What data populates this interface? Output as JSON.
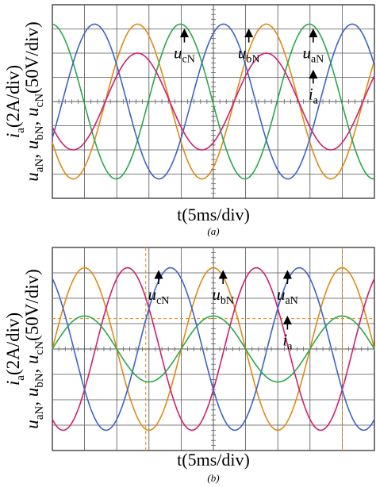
{
  "figure_caption": "",
  "chart_data": [
    {
      "type": "line",
      "panel_label": "(a)",
      "xlabel": "t(5ms/div)",
      "ylabel_parts": [
        "u",
        "aN",
        ", u",
        "bN",
        ", u",
        "cN",
        "(50V/div)"
      ],
      "ylabel2_parts": [
        "i",
        "a",
        "(2A/div)"
      ],
      "xlim": [
        0,
        10
      ],
      "ylim": [
        -4,
        4
      ],
      "x_unit": "div",
      "y_unit": "div",
      "grid": true,
      "series": [
        {
          "name": "uaN",
          "color": "#e08a14",
          "amplitude": 3.2,
          "phase_deg": -148,
          "period_div": 4
        },
        {
          "name": "ubN",
          "color": "#2aa84a",
          "amplitude": 3.2,
          "phase_deg": 92,
          "period_div": 4
        },
        {
          "name": "ucN",
          "color": "#3d63c9",
          "amplitude": 3.2,
          "phase_deg": -28,
          "period_div": 4
        },
        {
          "name": "ia",
          "color": "#d21f6e",
          "amplitude": 2.0,
          "phase_deg": -148,
          "period_div": 4
        }
      ],
      "annotations": [
        {
          "base": "u",
          "sub": "cN",
          "x": 4.1,
          "y": 2.9
        },
        {
          "base": "u",
          "sub": "bN",
          "x": 6.1,
          "y": 2.9
        },
        {
          "base": "u",
          "sub": "aN",
          "x": 8.1,
          "y": 2.9
        },
        {
          "base": "i",
          "sub": "a",
          "x": 8.1,
          "y": 1.2
        }
      ]
    },
    {
      "type": "line",
      "panel_label": "(b)",
      "xlabel": "t(5ms/div)",
      "ylabel_parts": [
        "u",
        "aN",
        ", u",
        "bN",
        ", u",
        "cN",
        "(50V/div)"
      ],
      "ylabel2_parts": [
        "i",
        "a",
        "(2A/div)"
      ],
      "xlim": [
        0,
        10
      ],
      "ylim": [
        -4,
        4
      ],
      "x_unit": "div",
      "y_unit": "div",
      "grid": true,
      "series": [
        {
          "name": "uaN",
          "color": "#e08a14",
          "amplitude": 3.2,
          "phase_deg": 0,
          "period_div": 4
        },
        {
          "name": "ubN",
          "color": "#d21f6e",
          "amplitude": 3.2,
          "phase_deg": -120,
          "period_div": 4
        },
        {
          "name": "ucN",
          "color": "#3d63c9",
          "amplitude": 3.2,
          "phase_deg": 120,
          "period_div": 4
        },
        {
          "name": "ia",
          "color": "#2aa84a",
          "amplitude": 1.3,
          "phase_deg": 0,
          "period_div": 4
        }
      ],
      "annotations": [
        {
          "base": "u",
          "sub": "cN",
          "x": 3.3,
          "y": 3.0
        },
        {
          "base": "u",
          "sub": "bN",
          "x": 5.3,
          "y": 3.0
        },
        {
          "base": "u",
          "sub": "aN",
          "x": 7.3,
          "y": 3.0
        },
        {
          "base": "i",
          "sub": "a",
          "x": 7.3,
          "y": 1.2
        }
      ],
      "cursors_x": [
        2.9,
        9.0
      ],
      "cursor_y": 1.2
    }
  ]
}
